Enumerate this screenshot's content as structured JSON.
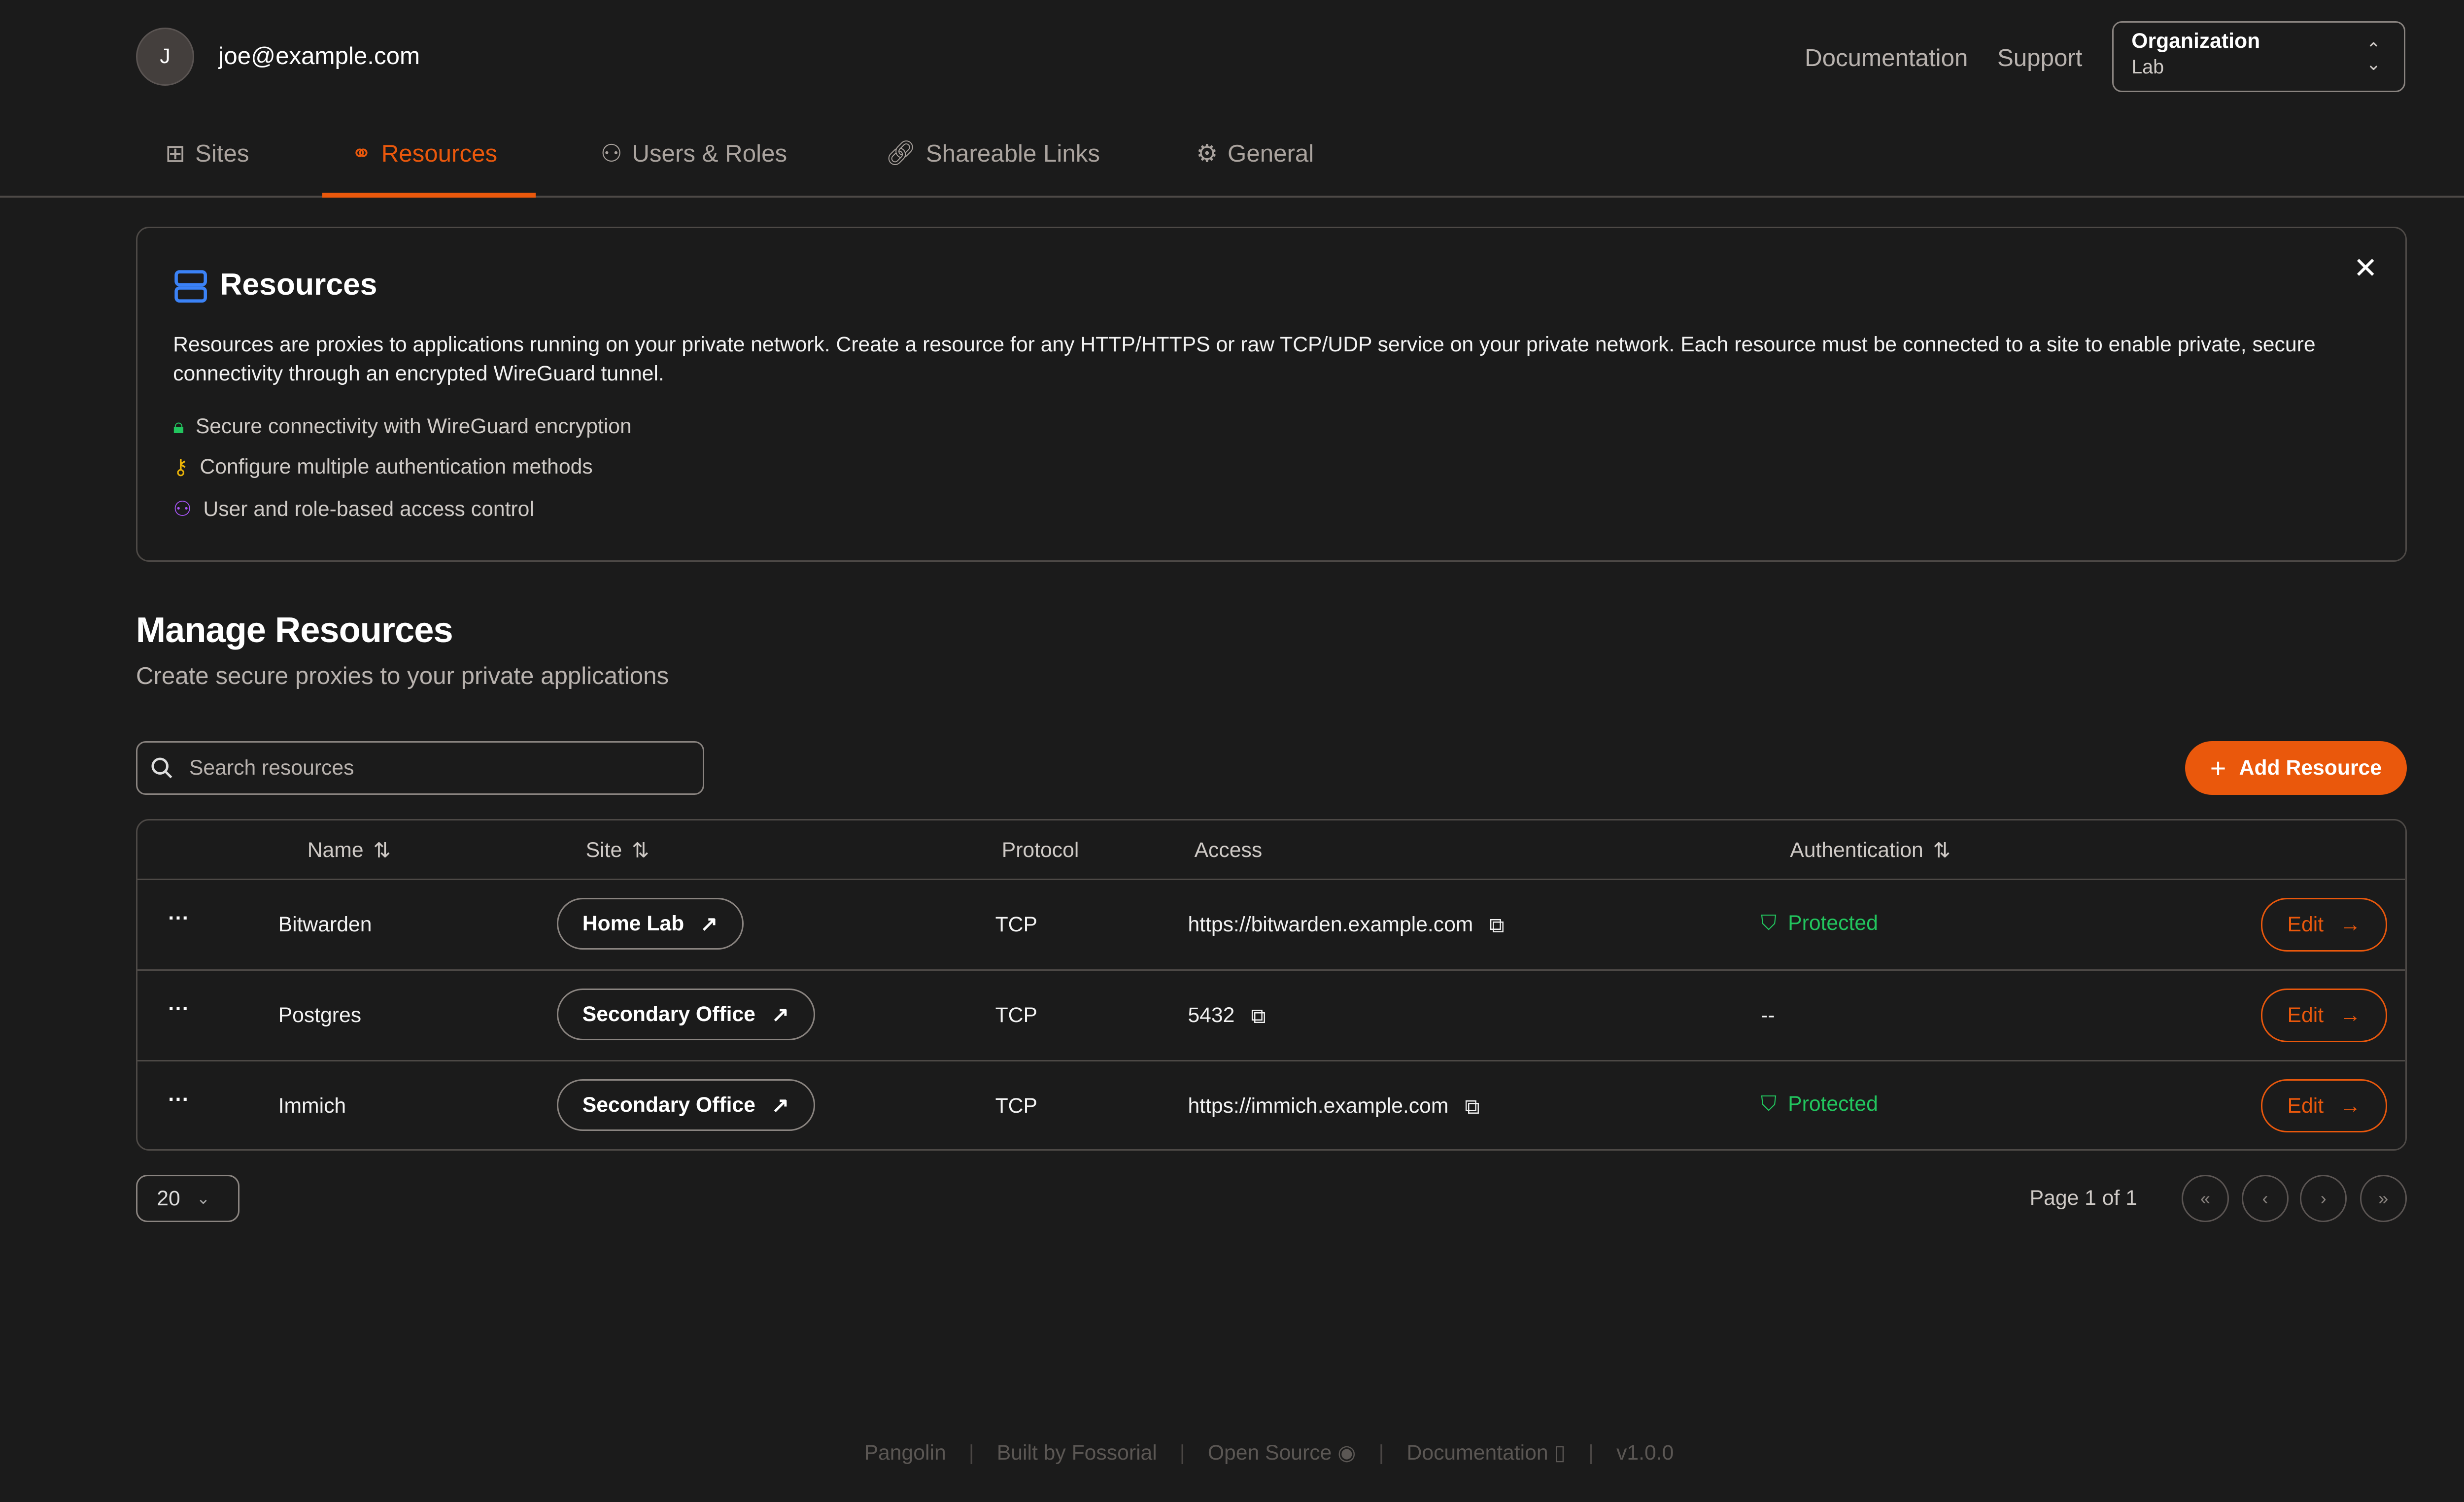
{
  "header": {
    "avatar_initial": "J",
    "email": "joe@example.com",
    "links": [
      "Documentation",
      "Support"
    ],
    "org_label": "Organization",
    "org_value": "Lab"
  },
  "tabs": [
    {
      "label": "Sites",
      "icon": "sites-icon"
    },
    {
      "label": "Resources",
      "icon": "resources-icon",
      "active": true
    },
    {
      "label": "Users & Roles",
      "icon": "users-icon"
    },
    {
      "label": "Shareable Links",
      "icon": "link-icon"
    },
    {
      "label": "General",
      "icon": "gear-icon"
    }
  ],
  "info": {
    "title": "Resources",
    "description": "Resources are proxies to applications running on your private network. Create a resource for any HTTP/HTTPS or raw TCP/UDP service on your private network. Each resource must be connected to a site to enable private, secure connectivity through an encrypted WireGuard tunnel.",
    "features": [
      "Secure connectivity with WireGuard encryption",
      "Configure multiple authentication methods",
      "User and role-based access control"
    ]
  },
  "main": {
    "title": "Manage Resources",
    "subtitle": "Create secure proxies to your private applications",
    "search_placeholder": "Search resources",
    "add_label": "Add Resource"
  },
  "table": {
    "headers": [
      "Name",
      "Site",
      "Protocol",
      "Access",
      "Authentication"
    ],
    "rows": [
      {
        "name": "Bitwarden",
        "site": "Home Lab",
        "protocol": "TCP",
        "access": "https://bitwarden.example.com",
        "auth": "Protected"
      },
      {
        "name": "Postgres",
        "site": "Secondary Office",
        "protocol": "TCP",
        "access": "5432",
        "auth": "--"
      },
      {
        "name": "Immich",
        "site": "Secondary Office",
        "protocol": "TCP",
        "access": "https://immich.example.com",
        "auth": "Protected"
      }
    ],
    "edit_label": "Edit"
  },
  "pagination": {
    "page_size": "20",
    "page_info": "Page 1 of 1"
  },
  "footer": {
    "items": [
      "Pangolin",
      "Built by Fossorial",
      "Open Source",
      "Documentation",
      "v1.0.0"
    ]
  },
  "colors": {
    "accent": "#ea580c",
    "success": "#22c55e",
    "background": "#1b1b1b"
  }
}
